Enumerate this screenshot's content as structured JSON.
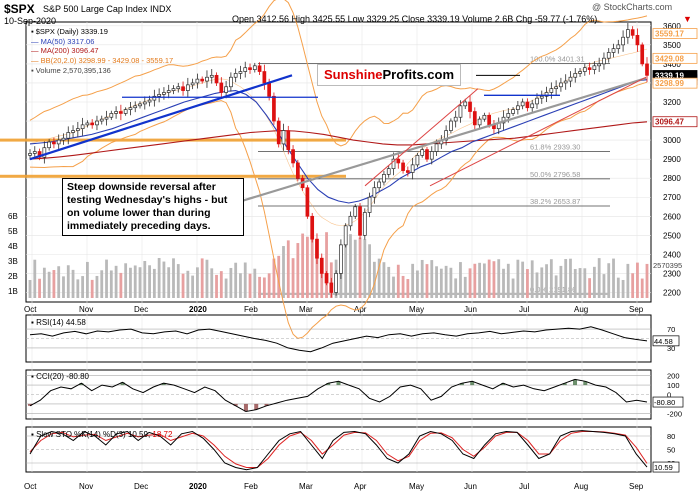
{
  "header": {
    "symbol": "$SPX",
    "name": "S&P 500 Large Cap Index",
    "exchange": "INDX",
    "date": "10-Sep-2020",
    "quote": "Open 3412.56  High 3425.55  Low 3329.25  Close 3339.19  Volume 2.6B  Chg -59.77 (-1.76%)",
    "watermark": "@ StockCharts.com",
    "change_arrow": "▼"
  },
  "legend": {
    "main": "$SPX (Daily) 3339.19",
    "ma50": "MA(50) 3317.06",
    "ma200": "MA(200) 3096.47",
    "bb": "BB(20,2.0) 3298.99 - 3429.08 - 3559.17",
    "volume": "Volume 2,570,395,136"
  },
  "brand": {
    "part1": "Sunshine",
    "part2": "Profits.com"
  },
  "callout": "Steep downside reversal after testing Wednesday's highs - but on volume lower than during immediately preceding days.",
  "panels": {
    "rsi": {
      "label": "RSI(14) 44.58",
      "last": "44.58",
      "levels": [
        "70",
        "50",
        "30"
      ]
    },
    "cci": {
      "label": "CCI(20) -80.80",
      "last": "-80.80",
      "levels": [
        "200",
        "100",
        "0",
        "-100",
        "-200"
      ]
    },
    "sto": {
      "label_k": "Slow STO %K(14) %D(3) 10.59,",
      "label_d": "18.72",
      "last": "10.59",
      "levels": [
        "80",
        "50",
        "20"
      ]
    }
  },
  "colors": {
    "up": "#2b2b2b",
    "down": "#d11",
    "bb": "#f5a04a",
    "ma50": "#2a3fb5",
    "ma200": "#b01818",
    "trend_blue": "#1133cc",
    "trend_grey": "#999",
    "fib": "#444",
    "orange_band": "#f0a030"
  },
  "chart_data": [
    {
      "type": "candlestick",
      "title": "$SPX S&P 500 Large Cap Index INDX",
      "x": [
        "Oct",
        "Nov",
        "Dec",
        "2020",
        "Feb",
        "Mar",
        "Apr",
        "May",
        "Jun",
        "Jul",
        "Aug",
        "Sep"
      ],
      "ylim": [
        2150,
        3620
      ],
      "yticks": [
        3600,
        3500,
        3400,
        3300,
        3200,
        3100,
        3000,
        2900,
        2800,
        2700,
        2600,
        2500,
        2400,
        2300,
        2200
      ],
      "price_tags": [
        {
          "label": "3559.17",
          "value": 3559.17,
          "color": "#f5a04a"
        },
        {
          "label": "3429.08",
          "value": 3429.08,
          "color": "#f5a04a"
        },
        {
          "label": "3317.06",
          "value": 3317.06,
          "color": "#2a3fb5"
        },
        {
          "label": "3339.19",
          "value": 3339.19,
          "color": "#000"
        },
        {
          "label": "3298.99",
          "value": 3298.99,
          "color": "#f5a04a"
        },
        {
          "label": "3096.47",
          "value": 3096.47,
          "color": "#b01818"
        }
      ],
      "fib_levels": [
        {
          "label": "100.0% 3401.31",
          "value": 3401.31
        },
        {
          "label": "61.8% 2939.30",
          "value": 2939.3
        },
        {
          "label": "50.0% 2796.58",
          "value": 2796.58
        },
        {
          "label": "38.2% 2653.87",
          "value": 2653.87
        },
        {
          "label": "0.0% 2191.86",
          "value": 2191.86
        }
      ],
      "volume_ticks": [
        "6B",
        "5B",
        "4B",
        "3B",
        "2B",
        "1B"
      ],
      "volume_last": "2570395",
      "closes": [
        2930,
        2940,
        2910,
        2960,
        2990,
        2980,
        3000,
        3010,
        3040,
        3050,
        3060,
        3080,
        3090,
        3080,
        3100,
        3110,
        3120,
        3140,
        3150,
        3140,
        3160,
        3170,
        3180,
        3190,
        3200,
        3210,
        3230,
        3240,
        3250,
        3260,
        3270,
        3280,
        3260,
        3290,
        3300,
        3320,
        3310,
        3330,
        3340,
        3300,
        3250,
        3280,
        3330,
        3350,
        3360,
        3380,
        3370,
        3390,
        3360,
        3300,
        3230,
        3100,
        2980,
        3050,
        2950,
        2880,
        2800,
        2750,
        2600,
        2480,
        2380,
        2300,
        2250,
        2200,
        2300,
        2450,
        2550,
        2600,
        2650,
        2500,
        2620,
        2700,
        2750,
        2780,
        2820,
        2850,
        2900,
        2880,
        2840,
        2830,
        2870,
        2920,
        2950,
        2900,
        2940,
        2980,
        3000,
        3050,
        3100,
        3120,
        3180,
        3200,
        3150,
        3080,
        3110,
        3130,
        3080,
        3060,
        3090,
        3120,
        3140,
        3160,
        3180,
        3200,
        3170,
        3190,
        3220,
        3230,
        3250,
        3270,
        3280,
        3300,
        3310,
        3330,
        3350,
        3360,
        3380,
        3370,
        3390,
        3400,
        3430,
        3460,
        3480,
        3500,
        3540,
        3580,
        3550,
        3500,
        3400,
        3340
      ],
      "ma50": [
        2980,
        2985,
        2990,
        3000,
        3010,
        3020,
        3030,
        3045,
        3060,
        3080,
        3100,
        3120,
        3140,
        3160,
        3180,
        3200,
        3215,
        3230,
        3245,
        3255,
        3260,
        3240,
        3200,
        3130,
        3050,
        2960,
        2880,
        2800,
        2740,
        2700,
        2680,
        2670,
        2680,
        2700,
        2730,
        2760,
        2800,
        2830,
        2860,
        2880,
        2910,
        2940,
        2960,
        2990,
        3010,
        3030,
        3050,
        3070,
        3090,
        3110,
        3130,
        3150,
        3170,
        3190,
        3210,
        3230,
        3250,
        3270,
        3290,
        3310,
        3317
      ],
      "ma200": [
        2900,
        2905,
        2912,
        2920,
        2930,
        2940,
        2950,
        2960,
        2970,
        2980,
        2990,
        3000,
        3010,
        3020,
        3030,
        3040,
        3045,
        3050,
        3048,
        3040,
        3030,
        3015,
        3000,
        2990,
        2980,
        2975,
        2975,
        2980,
        2985,
        2990,
        2995,
        3000,
        3005,
        3010,
        3020,
        3030,
        3040,
        3050,
        3060,
        3070,
        3080,
        3090,
        3096
      ]
    },
    {
      "type": "line",
      "name": "RSI(14)",
      "ylim": [
        0,
        100
      ],
      "levels": [
        70,
        50,
        30
      ],
      "values": [
        58,
        60,
        55,
        62,
        65,
        60,
        66,
        64,
        68,
        70,
        62,
        60,
        64,
        66,
        60,
        68,
        70,
        65,
        60,
        55,
        50,
        46,
        40,
        30,
        25,
        22,
        30,
        40,
        45,
        50,
        55,
        52,
        58,
        60,
        55,
        60,
        62,
        58,
        55,
        60,
        62,
        65,
        60,
        63,
        66,
        64,
        68,
        70,
        72,
        70,
        75,
        68,
        60,
        52,
        48,
        45
      ]
    },
    {
      "type": "line",
      "name": "CCI(20)",
      "ylim": [
        -260,
        260
      ],
      "levels": [
        200,
        100,
        0,
        -100,
        -200
      ],
      "values": [
        -120,
        -60,
        40,
        80,
        60,
        120,
        40,
        100,
        80,
        130,
        60,
        20,
        80,
        120,
        100,
        60,
        20,
        80,
        40,
        -60,
        -120,
        -180,
        -160,
        -120,
        -90,
        -60,
        -40,
        -20,
        60,
        120,
        140,
        100,
        60,
        -40,
        -80,
        -20,
        80,
        100,
        60,
        -60,
        -20,
        80,
        120,
        140,
        100,
        60,
        120,
        80,
        100,
        60,
        40,
        80,
        120,
        160,
        140,
        100,
        80,
        20,
        -80,
        -60,
        -80
      ]
    },
    {
      "type": "line",
      "name": "Slow STO %K(14) %D(3)",
      "ylim": [
        0,
        100
      ],
      "levels": [
        80,
        50,
        20
      ],
      "k": [
        40,
        80,
        90,
        85,
        70,
        90,
        80,
        60,
        85,
        90,
        70,
        88,
        80,
        60,
        85,
        90,
        75,
        50,
        20,
        10,
        5,
        10,
        40,
        70,
        85,
        90,
        60,
        30,
        70,
        88,
        90,
        85,
        60,
        30,
        20,
        40,
        80,
        90,
        85,
        70,
        40,
        30,
        60,
        85,
        90,
        88,
        60,
        30,
        40,
        80,
        90,
        92,
        90,
        88,
        85,
        80,
        40,
        11
      ],
      "d": [
        45,
        70,
        85,
        88,
        78,
        82,
        84,
        70,
        78,
        86,
        78,
        82,
        84,
        70,
        78,
        86,
        80,
        60,
        35,
        18,
        10,
        10,
        30,
        60,
        80,
        88,
        70,
        40,
        60,
        82,
        88,
        87,
        70,
        40,
        25,
        35,
        70,
        86,
        87,
        76,
        50,
        35,
        55,
        80,
        88,
        88,
        70,
        40,
        40,
        70,
        86,
        90,
        90,
        89,
        86,
        82,
        55,
        19
      ]
    }
  ]
}
